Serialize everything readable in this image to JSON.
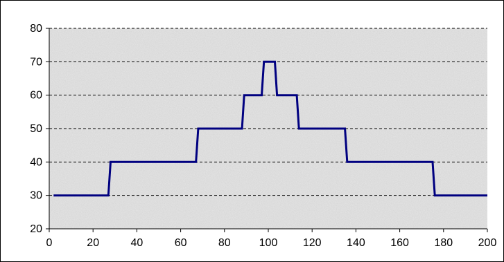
{
  "chart_data": {
    "type": "line",
    "title": "",
    "xlabel": "",
    "ylabel": "",
    "xlim": [
      0,
      200
    ],
    "ylim": [
      20,
      80
    ],
    "xticks": [
      0,
      20,
      40,
      60,
      80,
      100,
      120,
      140,
      160,
      180,
      200
    ],
    "yticks": [
      20,
      30,
      40,
      50,
      60,
      70,
      80
    ],
    "grid": "horizontal dashed",
    "legend": "none",
    "plot_background": "#e6e6e6",
    "series": [
      {
        "color": "#000080",
        "x": [
          2,
          27,
          28,
          67,
          68,
          88,
          89,
          97,
          98,
          103,
          104,
          113,
          114,
          135,
          136,
          175,
          176,
          200
        ],
        "y": [
          30,
          30,
          40,
          40,
          50,
          50,
          60,
          60,
          70,
          70,
          60,
          60,
          50,
          50,
          40,
          40,
          30,
          30
        ]
      }
    ]
  }
}
